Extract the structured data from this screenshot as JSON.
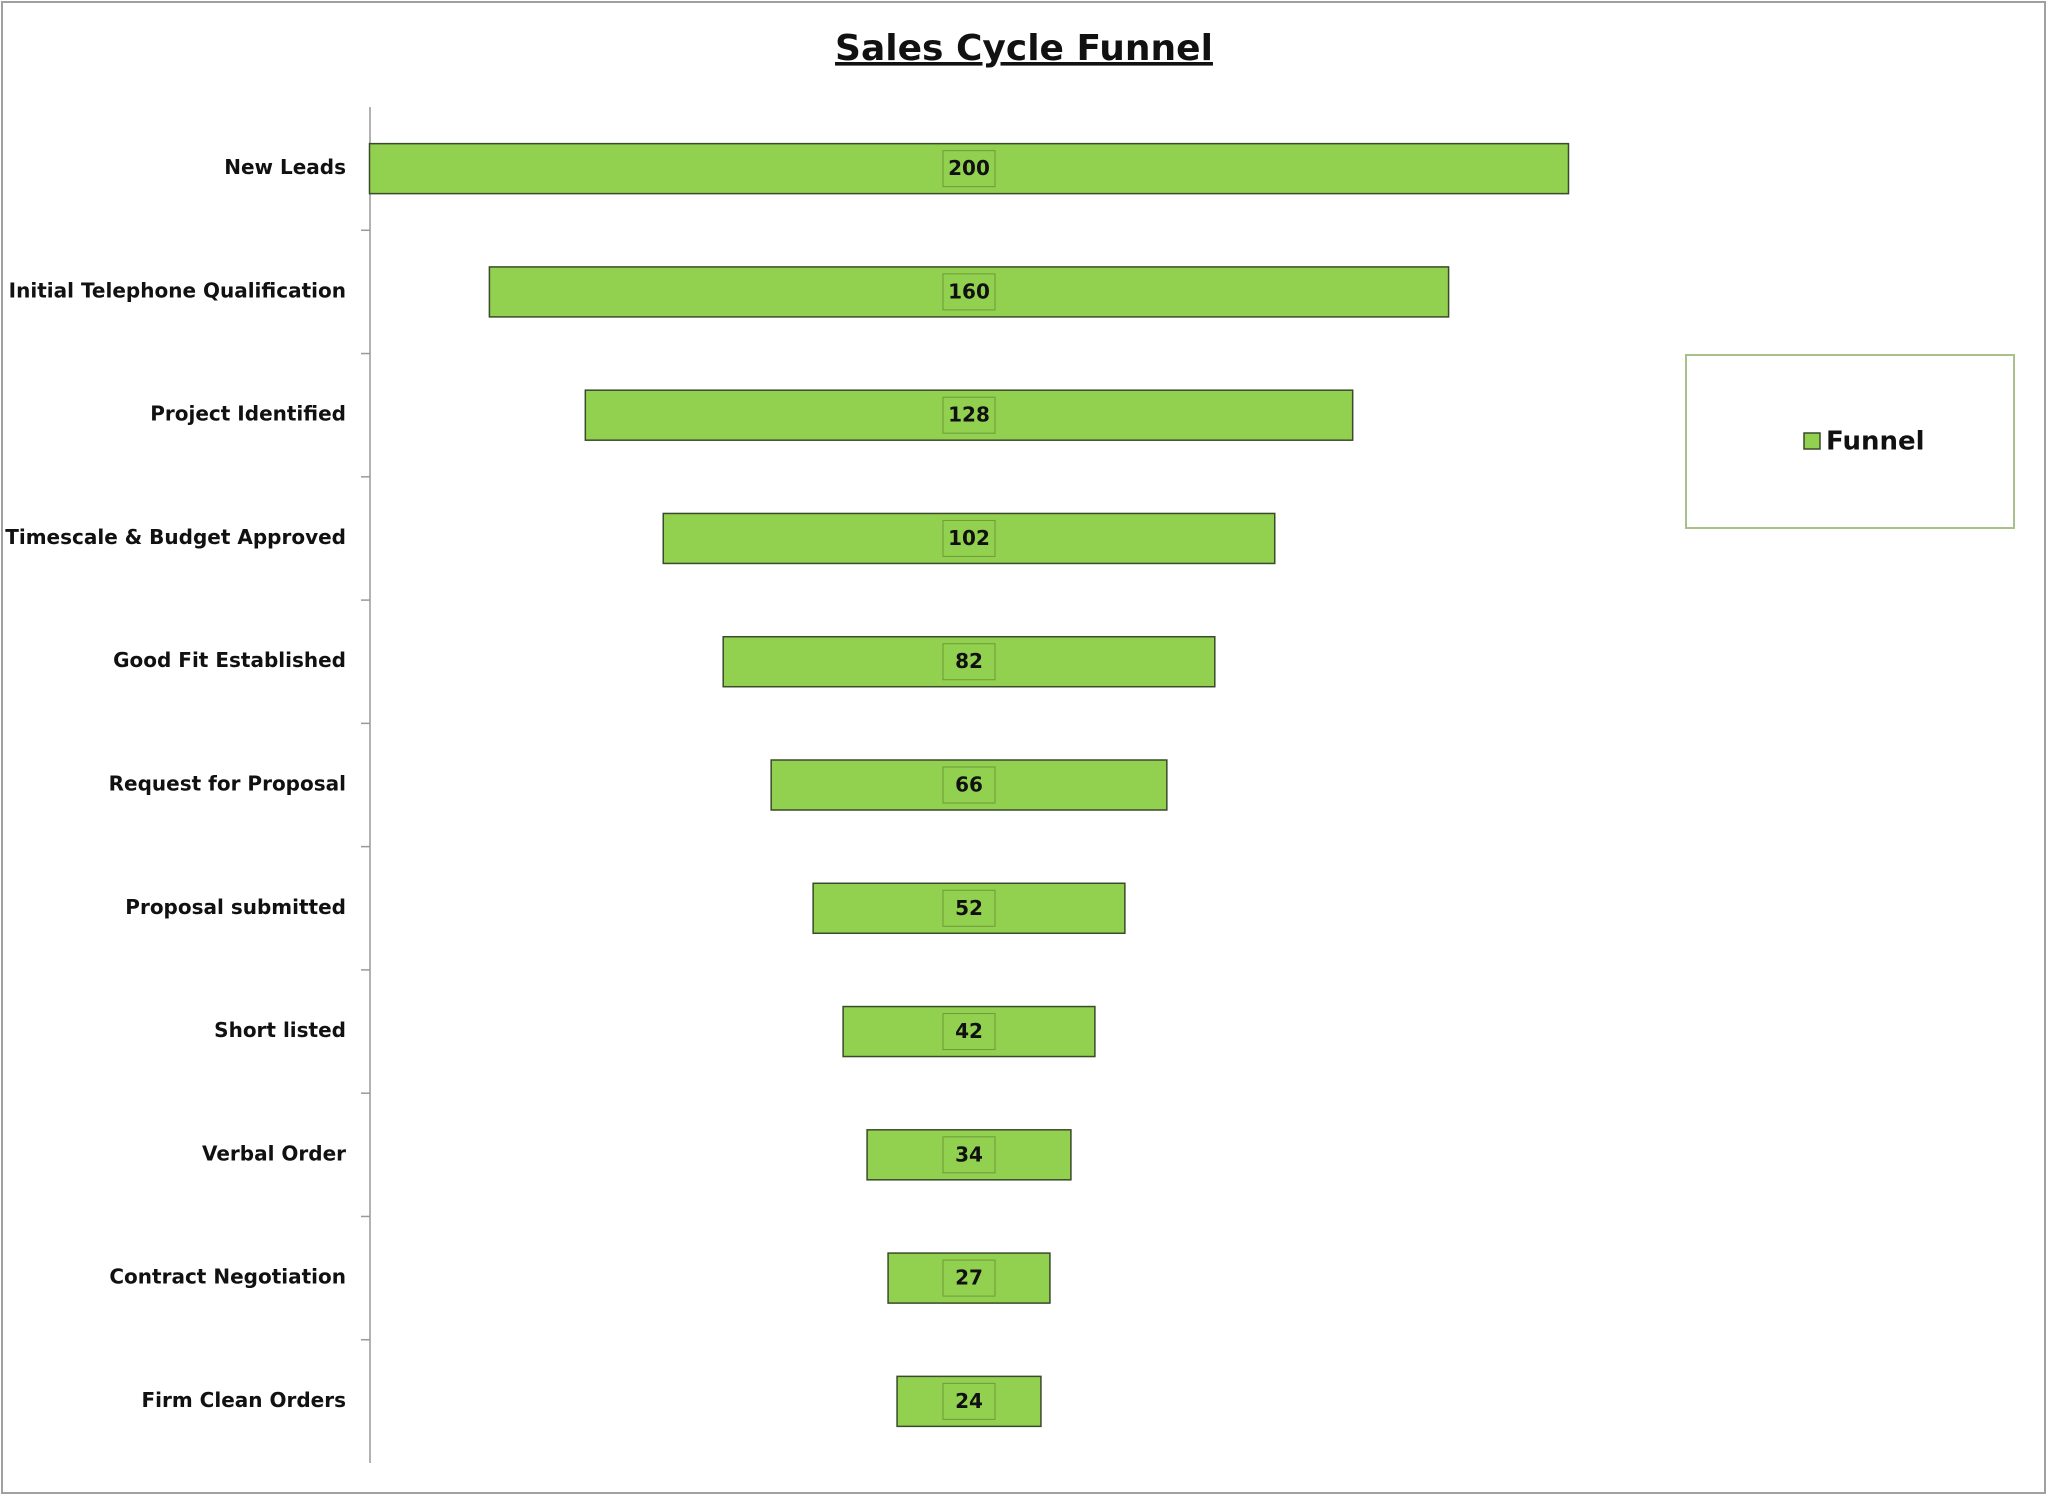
{
  "chart_data": {
    "type": "funnel",
    "title": "Sales Cycle Funnel",
    "categories": [
      "New Leads",
      "Initial Telephone Qualification",
      "Project Identified",
      "Timescale & Budget Approved",
      "Good Fit Established",
      "Request for Proposal",
      "Proposal submitted",
      "Short listed",
      "Verbal Order",
      "Contract Negotiation",
      "Firm Clean Orders"
    ],
    "series": [
      {
        "name": "Funnel",
        "color": "#92d050",
        "values": [
          200,
          160,
          128,
          102,
          82,
          66,
          52,
          42,
          34,
          27,
          24
        ]
      }
    ],
    "legend": "right"
  }
}
